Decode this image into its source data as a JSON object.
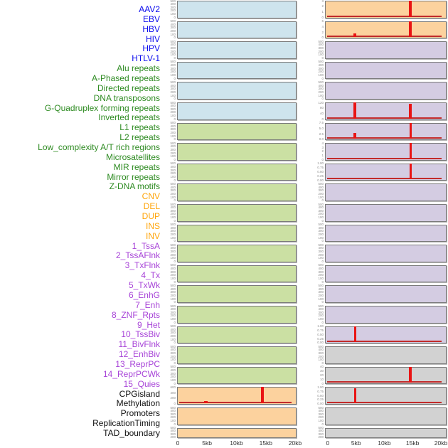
{
  "chart_data": {
    "type": "area",
    "title": "",
    "x_unit": "kb",
    "x_range": [
      0,
      20
    ],
    "grid": false,
    "layout_note": "44 tracks in 2 columns of 22 rows; labels listed vertically at left",
    "x_axis": {
      "ticks": [
        "0",
        "5kb",
        "10kb",
        "15kb",
        "20kb"
      ]
    },
    "colors": {
      "spike": "#E91414",
      "baseline": "#C22B2B",
      "box_border": "#7A7A7A",
      "ytick_text": "#8C8C8C",
      "xaxis_text": "#333333"
    },
    "groups": {
      "virus": {
        "label_color": "#0B0BEE",
        "bg": "#CEE4ED"
      },
      "repeat": {
        "label_color": "#2E8B22",
        "bg": "#CBE0A3"
      },
      "sv": {
        "label_color": "#FFA50A",
        "bg": "#FCD29E"
      },
      "chromatin": {
        "label_color": "#A845D8",
        "bg": "#D4CCE2"
      },
      "other": {
        "label_color": "#111111",
        "bg": "#D2D2D2"
      }
    },
    "tracks": [
      {
        "name": "AAV2",
        "group": "virus",
        "yticks": [
          "500",
          "400",
          "300",
          "200",
          "100",
          "0"
        ],
        "baseline": false,
        "spikes": []
      },
      {
        "name": "EBV",
        "group": "virus",
        "yticks": [
          "500",
          "400",
          "300",
          "200",
          "100",
          "0"
        ],
        "baseline": false,
        "spikes": []
      },
      {
        "name": "HBV",
        "group": "virus",
        "yticks": [
          "500",
          "400",
          "300",
          "200",
          "100",
          "0"
        ],
        "baseline": false,
        "spikes": []
      },
      {
        "name": "HIV",
        "group": "virus",
        "yticks": [
          "500",
          "400",
          "300",
          "200",
          "100",
          "0"
        ],
        "baseline": false,
        "spikes": []
      },
      {
        "name": "HPV",
        "group": "virus",
        "yticks": [
          "500",
          "400",
          "300",
          "200",
          "100",
          "0"
        ],
        "baseline": false,
        "spikes": []
      },
      {
        "name": "HTLV-1",
        "group": "virus",
        "yticks": [
          "500",
          "400",
          "300",
          "200",
          "100",
          "0"
        ],
        "baseline": false,
        "spikes": []
      },
      {
        "name": "Alu repeats",
        "group": "repeat",
        "yticks": [
          "500",
          "400",
          "300",
          "200",
          "100",
          "0"
        ],
        "baseline": false,
        "spikes": []
      },
      {
        "name": "A-Phased repeats",
        "group": "repeat",
        "yticks": [
          "500",
          "400",
          "300",
          "200",
          "100",
          "0"
        ],
        "baseline": false,
        "spikes": []
      },
      {
        "name": "Directed repeats",
        "group": "repeat",
        "yticks": [
          "500",
          "400",
          "300",
          "200",
          "100",
          "0"
        ],
        "baseline": false,
        "spikes": []
      },
      {
        "name": "DNA transposons",
        "group": "repeat",
        "yticks": [
          "500",
          "400",
          "300",
          "200",
          "100",
          "0"
        ],
        "baseline": false,
        "spikes": []
      },
      {
        "name": "G-Quadruplex forming repeats",
        "group": "repeat",
        "yticks": [
          "500",
          "400",
          "300",
          "200",
          "100",
          "0"
        ],
        "baseline": false,
        "spikes": []
      },
      {
        "name": "Inverted repeats",
        "group": "repeat",
        "yticks": [
          "500",
          "400",
          "300",
          "200",
          "100",
          "0"
        ],
        "baseline": false,
        "spikes": []
      },
      {
        "name": "L1 repeats",
        "group": "repeat",
        "yticks": [
          "500",
          "400",
          "300",
          "200",
          "100",
          "0"
        ],
        "baseline": false,
        "spikes": []
      },
      {
        "name": "L2 repeats",
        "group": "repeat",
        "yticks": [
          "500",
          "400",
          "300",
          "200",
          "100",
          "0"
        ],
        "baseline": false,
        "spikes": []
      },
      {
        "name": "Low_complexity A/T rich regions",
        "group": "repeat",
        "yticks": [
          "500",
          "400",
          "300",
          "200",
          "100",
          "0"
        ],
        "baseline": false,
        "spikes": []
      },
      {
        "name": "Microsatellites",
        "group": "repeat",
        "yticks": [
          "500",
          "400",
          "300",
          "200",
          "100",
          "0"
        ],
        "baseline": false,
        "spikes": []
      },
      {
        "name": "MIR repeats",
        "group": "repeat",
        "yticks": [
          "500",
          "400",
          "300",
          "200",
          "100",
          "0"
        ],
        "baseline": false,
        "spikes": []
      },
      {
        "name": "Mirror repeats",
        "group": "repeat",
        "yticks": [
          "500",
          "400",
          "300",
          "200",
          "100",
          "0"
        ],
        "baseline": false,
        "spikes": []
      },
      {
        "name": "Z-DNA motifs",
        "group": "repeat",
        "yticks": [
          "500",
          "400",
          "300",
          "200",
          "100",
          "0"
        ],
        "baseline": false,
        "spikes": []
      },
      {
        "name": "CNV",
        "group": "sv",
        "yticks": [
          "600",
          "400",
          "200",
          "0"
        ],
        "baseline": true,
        "spikes": [
          {
            "x_kb": 5,
            "value": 80,
            "pos": 0.24,
            "h": 0.13,
            "w": 5
          },
          {
            "x_kb": 15,
            "value": 660,
            "pos": 0.715,
            "h": 1.0,
            "w": 4
          }
        ]
      },
      {
        "name": "DEL",
        "group": "sv",
        "yticks": [
          "500",
          "400",
          "300",
          "200",
          "100",
          "0"
        ],
        "baseline": false,
        "spikes": []
      },
      {
        "name": "DUP",
        "group": "sv",
        "yticks": [
          "500",
          "400",
          "300",
          "200",
          "100",
          "0"
        ],
        "baseline": false,
        "spikes": []
      },
      {
        "name": "INS",
        "group": "sv",
        "yticks": [
          "3",
          "2",
          "1",
          "0"
        ],
        "baseline": true,
        "spikes": [
          {
            "x_kb": 15,
            "value": 3.2,
            "pos": 0.705,
            "h": 1.0,
            "w": 4
          }
        ]
      },
      {
        "name": "INV",
        "group": "sv",
        "yticks": [
          "6",
          "4",
          "2",
          "0"
        ],
        "baseline": true,
        "spikes": [
          {
            "x_kb": 5,
            "value": 1.4,
            "pos": 0.245,
            "h": 0.22,
            "w": 4
          },
          {
            "x_kb": 15,
            "value": 6.6,
            "pos": 0.705,
            "h": 1.0,
            "w": 4
          }
        ]
      },
      {
        "name": "1_TssA",
        "group": "chromatin",
        "yticks": [
          "500",
          "400",
          "300",
          "200",
          "100",
          "0"
        ],
        "baseline": false,
        "spikes": []
      },
      {
        "name": "2_TssAFlnk",
        "group": "chromatin",
        "yticks": [
          "500",
          "400",
          "300",
          "200",
          "100",
          "0"
        ],
        "baseline": false,
        "spikes": []
      },
      {
        "name": "3_TxFlnk",
        "group": "chromatin",
        "yticks": [
          "500",
          "400",
          "300",
          "200",
          "100",
          "0"
        ],
        "baseline": false,
        "spikes": []
      },
      {
        "name": "4_Tx",
        "group": "chromatin",
        "yticks": [
          "120",
          "80",
          "40",
          "0"
        ],
        "baseline": true,
        "spikes": [
          {
            "x_kb": 5,
            "value": 135,
            "pos": 0.245,
            "h": 1.0,
            "w": 4
          },
          {
            "x_kb": 15,
            "value": 122,
            "pos": 0.705,
            "h": 0.92,
            "w": 4
          }
        ]
      },
      {
        "name": "5_TxWk",
        "group": "chromatin",
        "yticks": [
          "7.5",
          "5.0",
          "2.5",
          "0.0"
        ],
        "baseline": true,
        "spikes": [
          {
            "x_kb": 5,
            "value": 2.9,
            "pos": 0.245,
            "h": 0.36,
            "w": 4
          },
          {
            "x_kb": 15,
            "value": 8.3,
            "pos": 0.705,
            "h": 1.0,
            "w": 3
          }
        ]
      },
      {
        "name": "6_EnhG",
        "group": "chromatin",
        "yticks": [
          "4",
          "3",
          "2",
          "1",
          "0"
        ],
        "baseline": true,
        "spikes": [
          {
            "x_kb": 15,
            "value": 4.3,
            "pos": 0.705,
            "h": 1.0,
            "w": 3
          }
        ]
      },
      {
        "name": "7_Enh",
        "group": "chromatin",
        "yticks": [
          "1.00",
          "0.75",
          "0.50",
          "0.25",
          "0.00"
        ],
        "baseline": true,
        "spikes": [
          {
            "x_kb": 15,
            "value": 1.05,
            "pos": 0.705,
            "h": 1.0,
            "w": 3
          }
        ]
      },
      {
        "name": "8_ZNF_Rpts",
        "group": "chromatin",
        "yticks": [
          "500",
          "400",
          "300",
          "200",
          "100",
          "0"
        ],
        "baseline": false,
        "spikes": []
      },
      {
        "name": "9_Het",
        "group": "chromatin",
        "yticks": [
          "500",
          "400",
          "300",
          "200",
          "100",
          "0"
        ],
        "baseline": false,
        "spikes": []
      },
      {
        "name": "10_TssBiv",
        "group": "chromatin",
        "yticks": [
          "500",
          "400",
          "300",
          "200",
          "100",
          "0"
        ],
        "baseline": false,
        "spikes": []
      },
      {
        "name": "11_BivFlnk",
        "group": "chromatin",
        "yticks": [
          "500",
          "400",
          "300",
          "200",
          "100",
          "0"
        ],
        "baseline": false,
        "spikes": []
      },
      {
        "name": "12_EnhBiv",
        "group": "chromatin",
        "yticks": [
          "500",
          "400",
          "300",
          "200",
          "100",
          "0"
        ],
        "baseline": false,
        "spikes": []
      },
      {
        "name": "13_ReprPC",
        "group": "chromatin",
        "yticks": [
          "500",
          "400",
          "300",
          "200",
          "100",
          "0"
        ],
        "baseline": false,
        "spikes": []
      },
      {
        "name": "14_ReprPCWk",
        "group": "chromatin",
        "yticks": [
          "500",
          "400",
          "300",
          "200",
          "100",
          "0"
        ],
        "baseline": false,
        "spikes": []
      },
      {
        "name": "15_Quies",
        "group": "chromatin",
        "yticks": [
          "1.00",
          "0.75",
          "0.50",
          "0.25",
          "0.00"
        ],
        "baseline": true,
        "spikes": [
          {
            "x_kb": 5,
            "value": 1.05,
            "pos": 0.245,
            "h": 1.0,
            "w": 3
          }
        ]
      },
      {
        "name": "CPGisland",
        "group": "other",
        "yticks": [
          "500",
          "400",
          "300",
          "200",
          "100",
          "0"
        ],
        "baseline": false,
        "spikes": []
      },
      {
        "name": "Methylation",
        "group": "other",
        "yticks": [
          "40",
          "30",
          "20",
          "10",
          "0"
        ],
        "baseline": true,
        "spikes": [
          {
            "x_kb": 15,
            "value": 42,
            "pos": 0.705,
            "h": 1.0,
            "w": 4
          }
        ]
      },
      {
        "name": "Promoters",
        "group": "other",
        "yticks": [
          "1.00",
          "0.75",
          "0.50",
          "0.25",
          "0.00"
        ],
        "baseline": true,
        "spikes": [
          {
            "x_kb": 5,
            "value": 0.95,
            "pos": 0.245,
            "h": 0.92,
            "w": 3
          }
        ]
      },
      {
        "name": "ReplicationTiming",
        "group": "other",
        "yticks": [
          "500",
          "400",
          "300",
          "200",
          "100",
          "0"
        ],
        "baseline": false,
        "spikes": []
      },
      {
        "name": "TAD_boundary",
        "group": "other",
        "yticks": [
          "500",
          "400",
          "300",
          "200",
          "100",
          "0"
        ],
        "baseline": false,
        "spikes": []
      }
    ]
  }
}
